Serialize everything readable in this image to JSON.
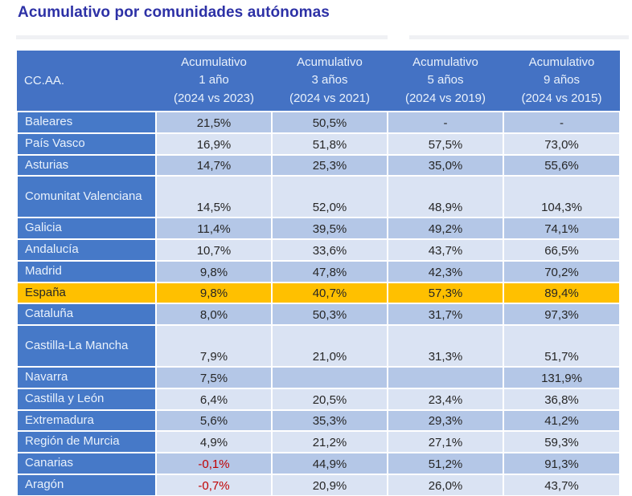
{
  "title": "Acumulativo por comunidades autónomas",
  "chart_data": {
    "type": "table",
    "title": "Acumulativo por comunidades autónomas",
    "corner_header": "CC.AA.",
    "column_headers": [
      {
        "label": "Acumulativo 1 año (2024 vs 2023)",
        "lines": [
          "Acumulativo",
          "1 año",
          "(2024 vs 2023)"
        ]
      },
      {
        "label": "Acumulativo 3 años (2024 vs 2021)",
        "lines": [
          "Acumulativo",
          "3 años",
          "(2024 vs 2021)"
        ]
      },
      {
        "label": "Acumulativo 5 años (2024 vs 2019)",
        "lines": [
          "Acumulativo",
          "5 años",
          "(2024 vs 2019)"
        ]
      },
      {
        "label": "Acumulativo 9 años (2024 vs 2015)",
        "lines": [
          "Acumulativo",
          "9 años",
          "(2024 vs 2015)"
        ]
      }
    ],
    "rows": [
      {
        "name": "Baleares",
        "values": [
          "21,5%",
          "50,5%",
          "-",
          "-"
        ],
        "highlight": false
      },
      {
        "name": "País Vasco",
        "values": [
          "16,9%",
          "51,8%",
          "57,5%",
          "73,0%"
        ],
        "highlight": false
      },
      {
        "name": "Asturias",
        "values": [
          "14,7%",
          "25,3%",
          "35,0%",
          "55,6%"
        ],
        "highlight": false
      },
      {
        "name": "Comunitat Valenciana",
        "values": [
          "14,5%",
          "52,0%",
          "48,9%",
          "104,3%"
        ],
        "highlight": false
      },
      {
        "name": "Galicia",
        "values": [
          "11,4%",
          "39,5%",
          "49,2%",
          "74,1%"
        ],
        "highlight": false
      },
      {
        "name": "Andalucía",
        "values": [
          "10,7%",
          "33,6%",
          "43,7%",
          "66,5%"
        ],
        "highlight": false
      },
      {
        "name": "Madrid",
        "values": [
          "9,8%",
          "47,8%",
          "42,3%",
          "70,2%"
        ],
        "highlight": false
      },
      {
        "name": "España",
        "values": [
          "9,8%",
          "40,7%",
          "57,3%",
          "89,4%"
        ],
        "highlight": true
      },
      {
        "name": "Cataluña",
        "values": [
          "8,0%",
          "50,3%",
          "31,7%",
          "97,3%"
        ],
        "highlight": false
      },
      {
        "name": "Castilla-La Mancha",
        "values": [
          "7,9%",
          "21,0%",
          "31,3%",
          "51,7%"
        ],
        "highlight": false
      },
      {
        "name": "Navarra",
        "values": [
          "7,5%",
          "",
          "",
          "131,9%"
        ],
        "highlight": false
      },
      {
        "name": "Castilla y León",
        "values": [
          "6,4%",
          "20,5%",
          "23,4%",
          "36,8%"
        ],
        "highlight": false
      },
      {
        "name": "Extremadura",
        "values": [
          "5,6%",
          "35,3%",
          "29,3%",
          "41,2%"
        ],
        "highlight": false
      },
      {
        "name": "Región de Murcia",
        "values": [
          "4,9%",
          "21,2%",
          "27,1%",
          "59,3%"
        ],
        "highlight": false
      },
      {
        "name": "Canarias",
        "values": [
          "-0,1%",
          "44,9%",
          "51,2%",
          "91,3%"
        ],
        "highlight": false
      },
      {
        "name": "Aragón",
        "values": [
          "-0,7%",
          "20,9%",
          "26,0%",
          "43,7%"
        ],
        "highlight": false
      }
    ]
  },
  "colors": {
    "title_text": "#2D31A6",
    "header_bg": "#4472C4",
    "row_header_bg": "#4679C8",
    "row_light_bg": "#DAE3F3",
    "row_dark_bg": "#B4C7E7",
    "highlight_bg": "#FFC000",
    "negative_text": "#C00000",
    "cell_text": "#262626",
    "header_text": "#E9F1FB"
  }
}
